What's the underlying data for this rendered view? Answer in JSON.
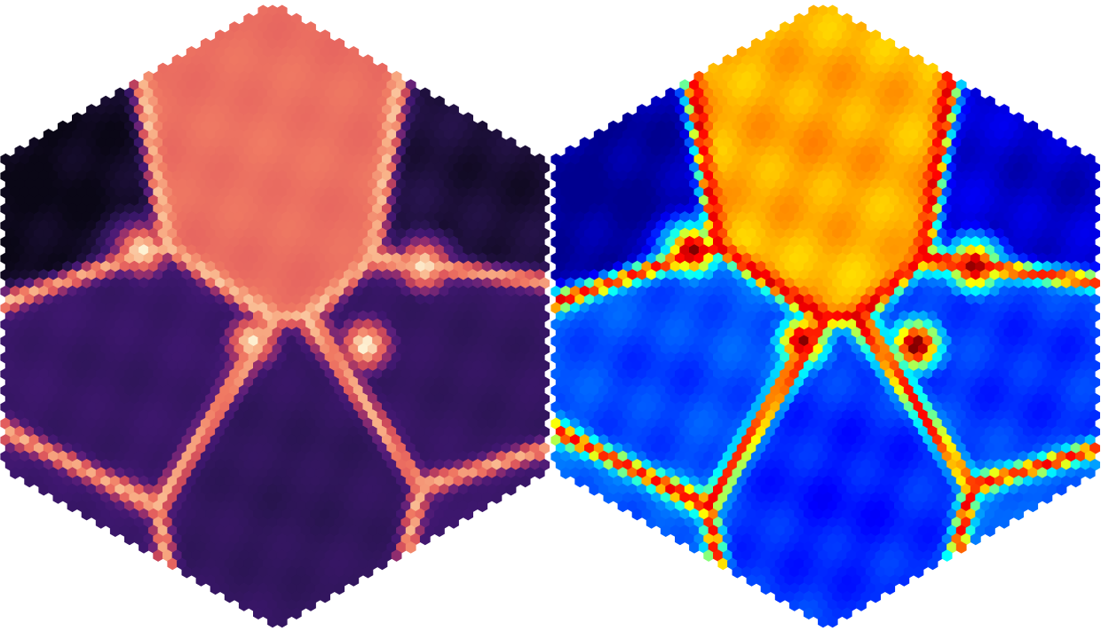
{
  "panels": [
    {
      "colormap": "magma",
      "palette": [
        "#0a0716",
        "#2a1553",
        "#3e176f",
        "#5b1f7b",
        "#8f2d6f",
        "#c6455a",
        "#e35e5e",
        "#f07a63",
        "#f9b48a",
        "#fdf2d4"
      ]
    },
    {
      "colormap": "jet",
      "palette": [
        "#00008f",
        "#0000ff",
        "#0070ff",
        "#00bfff",
        "#00ffff",
        "#80ff80",
        "#ffff00",
        "#ff8000",
        "#ff0000",
        "#800000"
      ]
    }
  ],
  "field_features": {
    "top_cell_level": 0.72,
    "bottom_cells_level": 0.22,
    "upper_corner_cells_level": 0.05,
    "boundary_ridge_level": 0.9,
    "junction_peak_level": 1.0
  }
}
